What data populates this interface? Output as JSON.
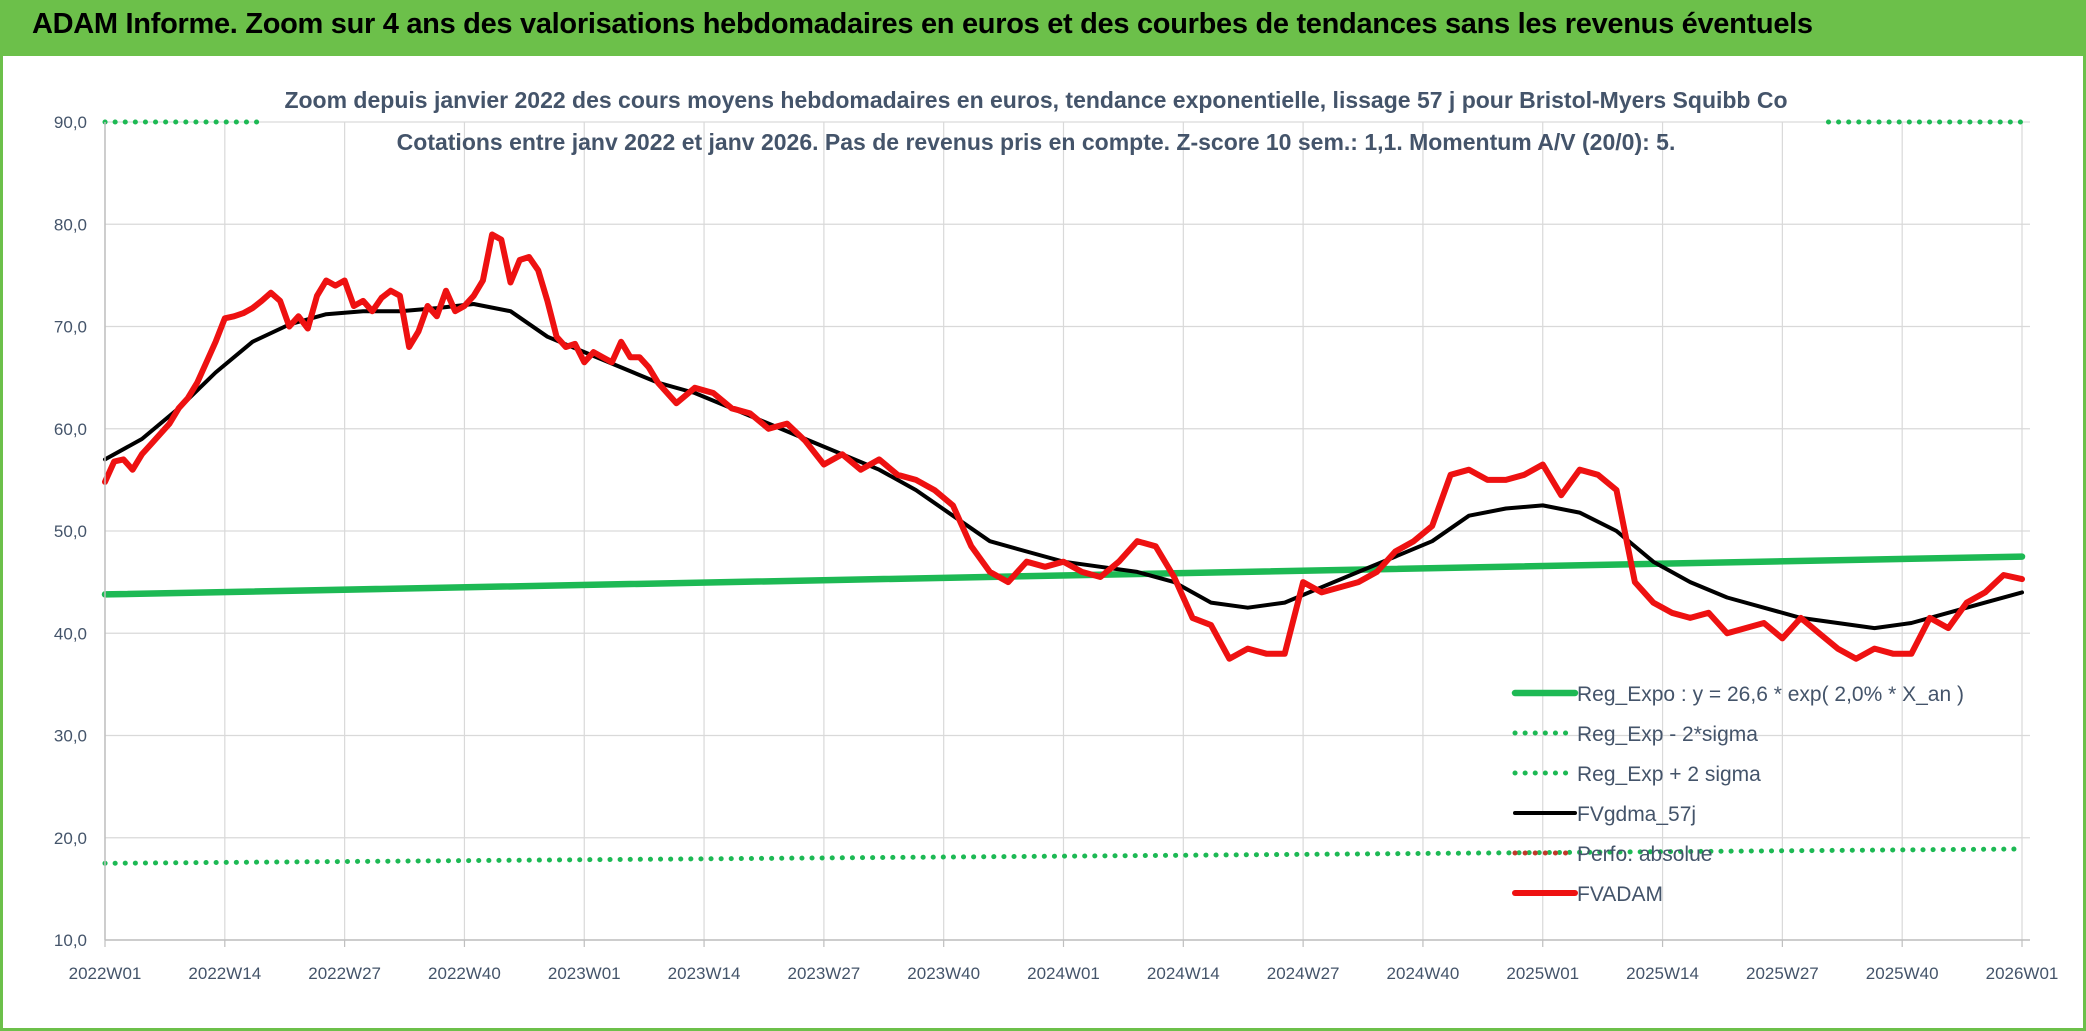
{
  "banner": {
    "title": "ADAM Informe. Zoom sur 4 ans des valorisations hebdomadaires en euros et des courbes de tendances sans les revenus éventuels"
  },
  "colors": {
    "banner_bg": "#6cc04a",
    "reg_expo": "#1db954",
    "fvgdma": "#000000",
    "fvadam": "#ee1111",
    "axis_text": "#44546a",
    "grid": "#d9d9d9"
  },
  "chart_data": {
    "type": "line",
    "title": "Zoom depuis janvier 2022 des cours moyens hebdomadaires en euros, tendance exponentielle, lissage 57 j pour Bristol-Myers Squibb Co",
    "subtitle": "Cotations entre janv 2022 et janv 2026. Pas de revenus pris en compte. Z-score 10 sem.: 1,1. Momentum A/V (20/0): 5.",
    "x_tick_labels": [
      "2022W01",
      "2022W14",
      "2022W27",
      "2022W40",
      "2023W01",
      "2023W14",
      "2023W27",
      "2023W40",
      "2024W01",
      "2024W14",
      "2024W27",
      "2024W40",
      "2025W01",
      "2025W14",
      "2025W27",
      "2025W40",
      "2026W01"
    ],
    "x_range_weeks": [
      0,
      208
    ],
    "y_ticks": [
      "10,0",
      "20,0",
      "30,0",
      "40,0",
      "50,0",
      "60,0",
      "70,0",
      "80,0",
      "90,0"
    ],
    "ylim": [
      10,
      90
    ],
    "grid": true,
    "legend_position": "bottom-right",
    "series": [
      {
        "name": "Reg_Expo : y = 26,6 * exp( 2,0% *  X_an )",
        "style": "solid-thick",
        "color": "#1db954",
        "x": [
          0,
          208
        ],
        "y": [
          43.8,
          47.5
        ]
      },
      {
        "name": "Reg_Exp - 2*sigma",
        "style": "dotted",
        "color": "#1db954",
        "x": [
          0,
          208
        ],
        "y": [
          17.5,
          18.9
        ]
      },
      {
        "name": "Reg_Exp + 2 sigma",
        "style": "dotted",
        "color": "#1db954",
        "x": [
          0,
          17,
          187,
          208
        ],
        "y": [
          90.0,
          90.0,
          90.0,
          90.0
        ],
        "segments": [
          [
            0,
            17
          ],
          [
            187,
            208
          ]
        ]
      },
      {
        "name": "FVgdma_57j",
        "style": "solid",
        "color": "#000000",
        "x": [
          0,
          4,
          8,
          12,
          16,
          20,
          24,
          28,
          32,
          36,
          40,
          44,
          48,
          52,
          56,
          60,
          64,
          68,
          72,
          76,
          80,
          84,
          88,
          92,
          96,
          100,
          104,
          108,
          112,
          116,
          120,
          124,
          128,
          132,
          136,
          140,
          144,
          148,
          152,
          156,
          160,
          164,
          168,
          172,
          176,
          180,
          184,
          188,
          192,
          196,
          200,
          204,
          208
        ],
        "y": [
          57.0,
          59.0,
          62.0,
          65.5,
          68.5,
          70.2,
          71.2,
          71.5,
          71.5,
          71.8,
          72.2,
          71.5,
          69.0,
          67.5,
          66.0,
          64.5,
          63.5,
          62.0,
          60.5,
          59.0,
          57.5,
          56.0,
          54.0,
          51.5,
          49.0,
          48.0,
          47.0,
          46.5,
          46.0,
          45.0,
          43.0,
          42.5,
          43.0,
          44.5,
          46.0,
          47.5,
          49.0,
          51.5,
          52.2,
          52.5,
          51.8,
          50.0,
          47.0,
          45.0,
          43.5,
          42.5,
          41.5,
          41.0,
          40.5,
          41.0,
          42.0,
          43.0,
          44.0
        ]
      },
      {
        "name": "Perfo. absolue",
        "style": "dotted",
        "color": "#c0392b",
        "x": [],
        "y": []
      },
      {
        "name": "FVADAM",
        "style": "solid-thick",
        "color": "#ee1111",
        "x": [
          0,
          1,
          2,
          3,
          4,
          5,
          6,
          7,
          8,
          9,
          10,
          11,
          12,
          13,
          14,
          15,
          16,
          17,
          18,
          19,
          20,
          21,
          22,
          23,
          24,
          25,
          26,
          27,
          28,
          29,
          30,
          31,
          32,
          33,
          34,
          35,
          36,
          37,
          38,
          39,
          40,
          41,
          42,
          43,
          44,
          45,
          46,
          47,
          48,
          49,
          50,
          51,
          52,
          53,
          54,
          55,
          56,
          57,
          58,
          59,
          60,
          62,
          64,
          66,
          68,
          70,
          72,
          74,
          76,
          78,
          80,
          82,
          84,
          86,
          88,
          90,
          92,
          94,
          96,
          98,
          100,
          102,
          104,
          106,
          108,
          110,
          112,
          114,
          116,
          118,
          120,
          122,
          124,
          126,
          128,
          130,
          132,
          134,
          136,
          138,
          140,
          142,
          144,
          146,
          148,
          150,
          152,
          154,
          156,
          158,
          160,
          162,
          164,
          166,
          168,
          170,
          172,
          174,
          176,
          178,
          180,
          182,
          184,
          186,
          188,
          190,
          192,
          194,
          196,
          198,
          200,
          202,
          204,
          206,
          208
        ],
        "y": [
          54.8,
          56.8,
          57.0,
          56.0,
          57.5,
          58.5,
          59.5,
          60.5,
          62.0,
          63.0,
          64.5,
          66.5,
          68.5,
          70.8,
          71.0,
          71.3,
          71.8,
          72.5,
          73.3,
          72.5,
          70.0,
          71.0,
          69.8,
          73.0,
          74.5,
          74.0,
          74.5,
          72.0,
          72.5,
          71.5,
          72.8,
          73.5,
          73.0,
          68.0,
          69.5,
          72.0,
          71.0,
          73.5,
          71.5,
          72.0,
          73.0,
          74.5,
          79.0,
          78.5,
          74.3,
          76.5,
          76.8,
          75.5,
          72.5,
          69.0,
          68.0,
          68.3,
          66.5,
          67.5,
          67.0,
          66.5,
          68.5,
          67.0,
          67.0,
          66.0,
          64.5,
          62.5,
          64.0,
          63.5,
          62.0,
          61.5,
          60.0,
          60.5,
          58.8,
          56.5,
          57.5,
          56.0,
          57.0,
          55.5,
          55.0,
          54.0,
          52.5,
          48.5,
          46.0,
          45.0,
          47.0,
          46.5,
          47.0,
          46.0,
          45.5,
          47.0,
          49.0,
          48.5,
          45.5,
          41.5,
          40.8,
          37.5,
          38.5,
          38.0,
          38.0,
          45.0,
          44.0,
          44.5,
          45.0,
          46.0,
          48.0,
          49.0,
          50.5,
          55.5,
          56.0,
          55.0,
          55.0,
          55.5,
          56.5,
          53.5,
          56.0,
          55.5,
          54.0,
          45.0,
          43.0,
          42.0,
          41.5,
          42.0,
          40.0,
          40.5,
          41.0,
          39.5,
          41.5,
          40.0,
          38.5,
          37.5,
          38.5,
          38.0,
          38.0,
          41.5,
          40.5,
          43.0,
          44.0,
          45.7,
          45.3
        ]
      }
    ]
  }
}
